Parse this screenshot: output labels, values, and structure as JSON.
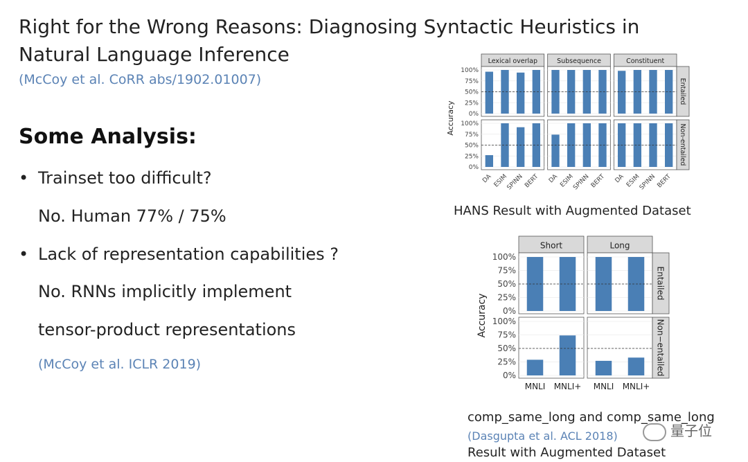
{
  "slide": {
    "title": "Right for the Wrong Reasons: Diagnosing Syntactic Heuristics in Natural Language Inference",
    "title_citation": "(McCoy et al. CoRR abs/1902.01007)",
    "section_heading": "Some Analysis:",
    "bullets": [
      {
        "marker": "•",
        "text": "Trainset too difficult?",
        "answer": "No. Human 77% / 75%"
      },
      {
        "marker": "•",
        "text": "Lack of representation capabilities ?",
        "answer_lines": [
          "No. RNNs implicitly implement",
          "tensor-product representations"
        ]
      }
    ],
    "bullet_citation": "(McCoy et al.  ICLR 2019)",
    "figure1_caption": "HANS Result with Augmented Dataset",
    "figure2_caption_line1": "comp_same_long and comp_same_long",
    "figure2_citation": "(Dasgupta et al.  ACL 2018)",
    "figure2_caption_line3": "Result with Augmented Dataset",
    "watermark": "量子位"
  },
  "chart_data": [
    {
      "type": "bar",
      "ylabel": "Accuracy",
      "ylim": [
        0,
        100
      ],
      "yticks": [
        "0%",
        "25%",
        "50%",
        "75%",
        "100%"
      ],
      "reference_line": 50,
      "columns": [
        "Lexical overlap",
        "Subsequence",
        "Constituent"
      ],
      "rows": [
        "Entailed",
        "Non-entailed"
      ],
      "categories": [
        "DA",
        "ESIM",
        "SPINN",
        "BERT"
      ],
      "bar_color": "#4a7fb5",
      "values": {
        "Entailed": {
          "Lexical overlap": [
            96,
            100,
            94,
            100
          ],
          "Subsequence": [
            100,
            100,
            100,
            100
          ],
          "Constituent": [
            98,
            100,
            100,
            100
          ]
        },
        "Non-entailed": {
          "Lexical overlap": [
            27,
            100,
            91,
            100
          ],
          "Subsequence": [
            74,
            100,
            100,
            100
          ],
          "Constituent": [
            100,
            100,
            100,
            100
          ]
        }
      }
    },
    {
      "type": "bar",
      "ylabel": "Accuracy",
      "ylim": [
        0,
        100
      ],
      "yticks": [
        "0%",
        "25%",
        "50%",
        "75%",
        "100%"
      ],
      "reference_line": 50,
      "columns": [
        "Short",
        "Long"
      ],
      "rows": [
        "Entailed",
        "Non−entailed"
      ],
      "categories": [
        "MNLI",
        "MNLI+"
      ],
      "bar_color": "#4a7fb5",
      "values": {
        "Entailed": {
          "Short": [
            100,
            100
          ],
          "Long": [
            100,
            100
          ]
        },
        "Non−entailed": {
          "Short": [
            29,
            74
          ],
          "Long": [
            27,
            33
          ]
        }
      }
    }
  ]
}
